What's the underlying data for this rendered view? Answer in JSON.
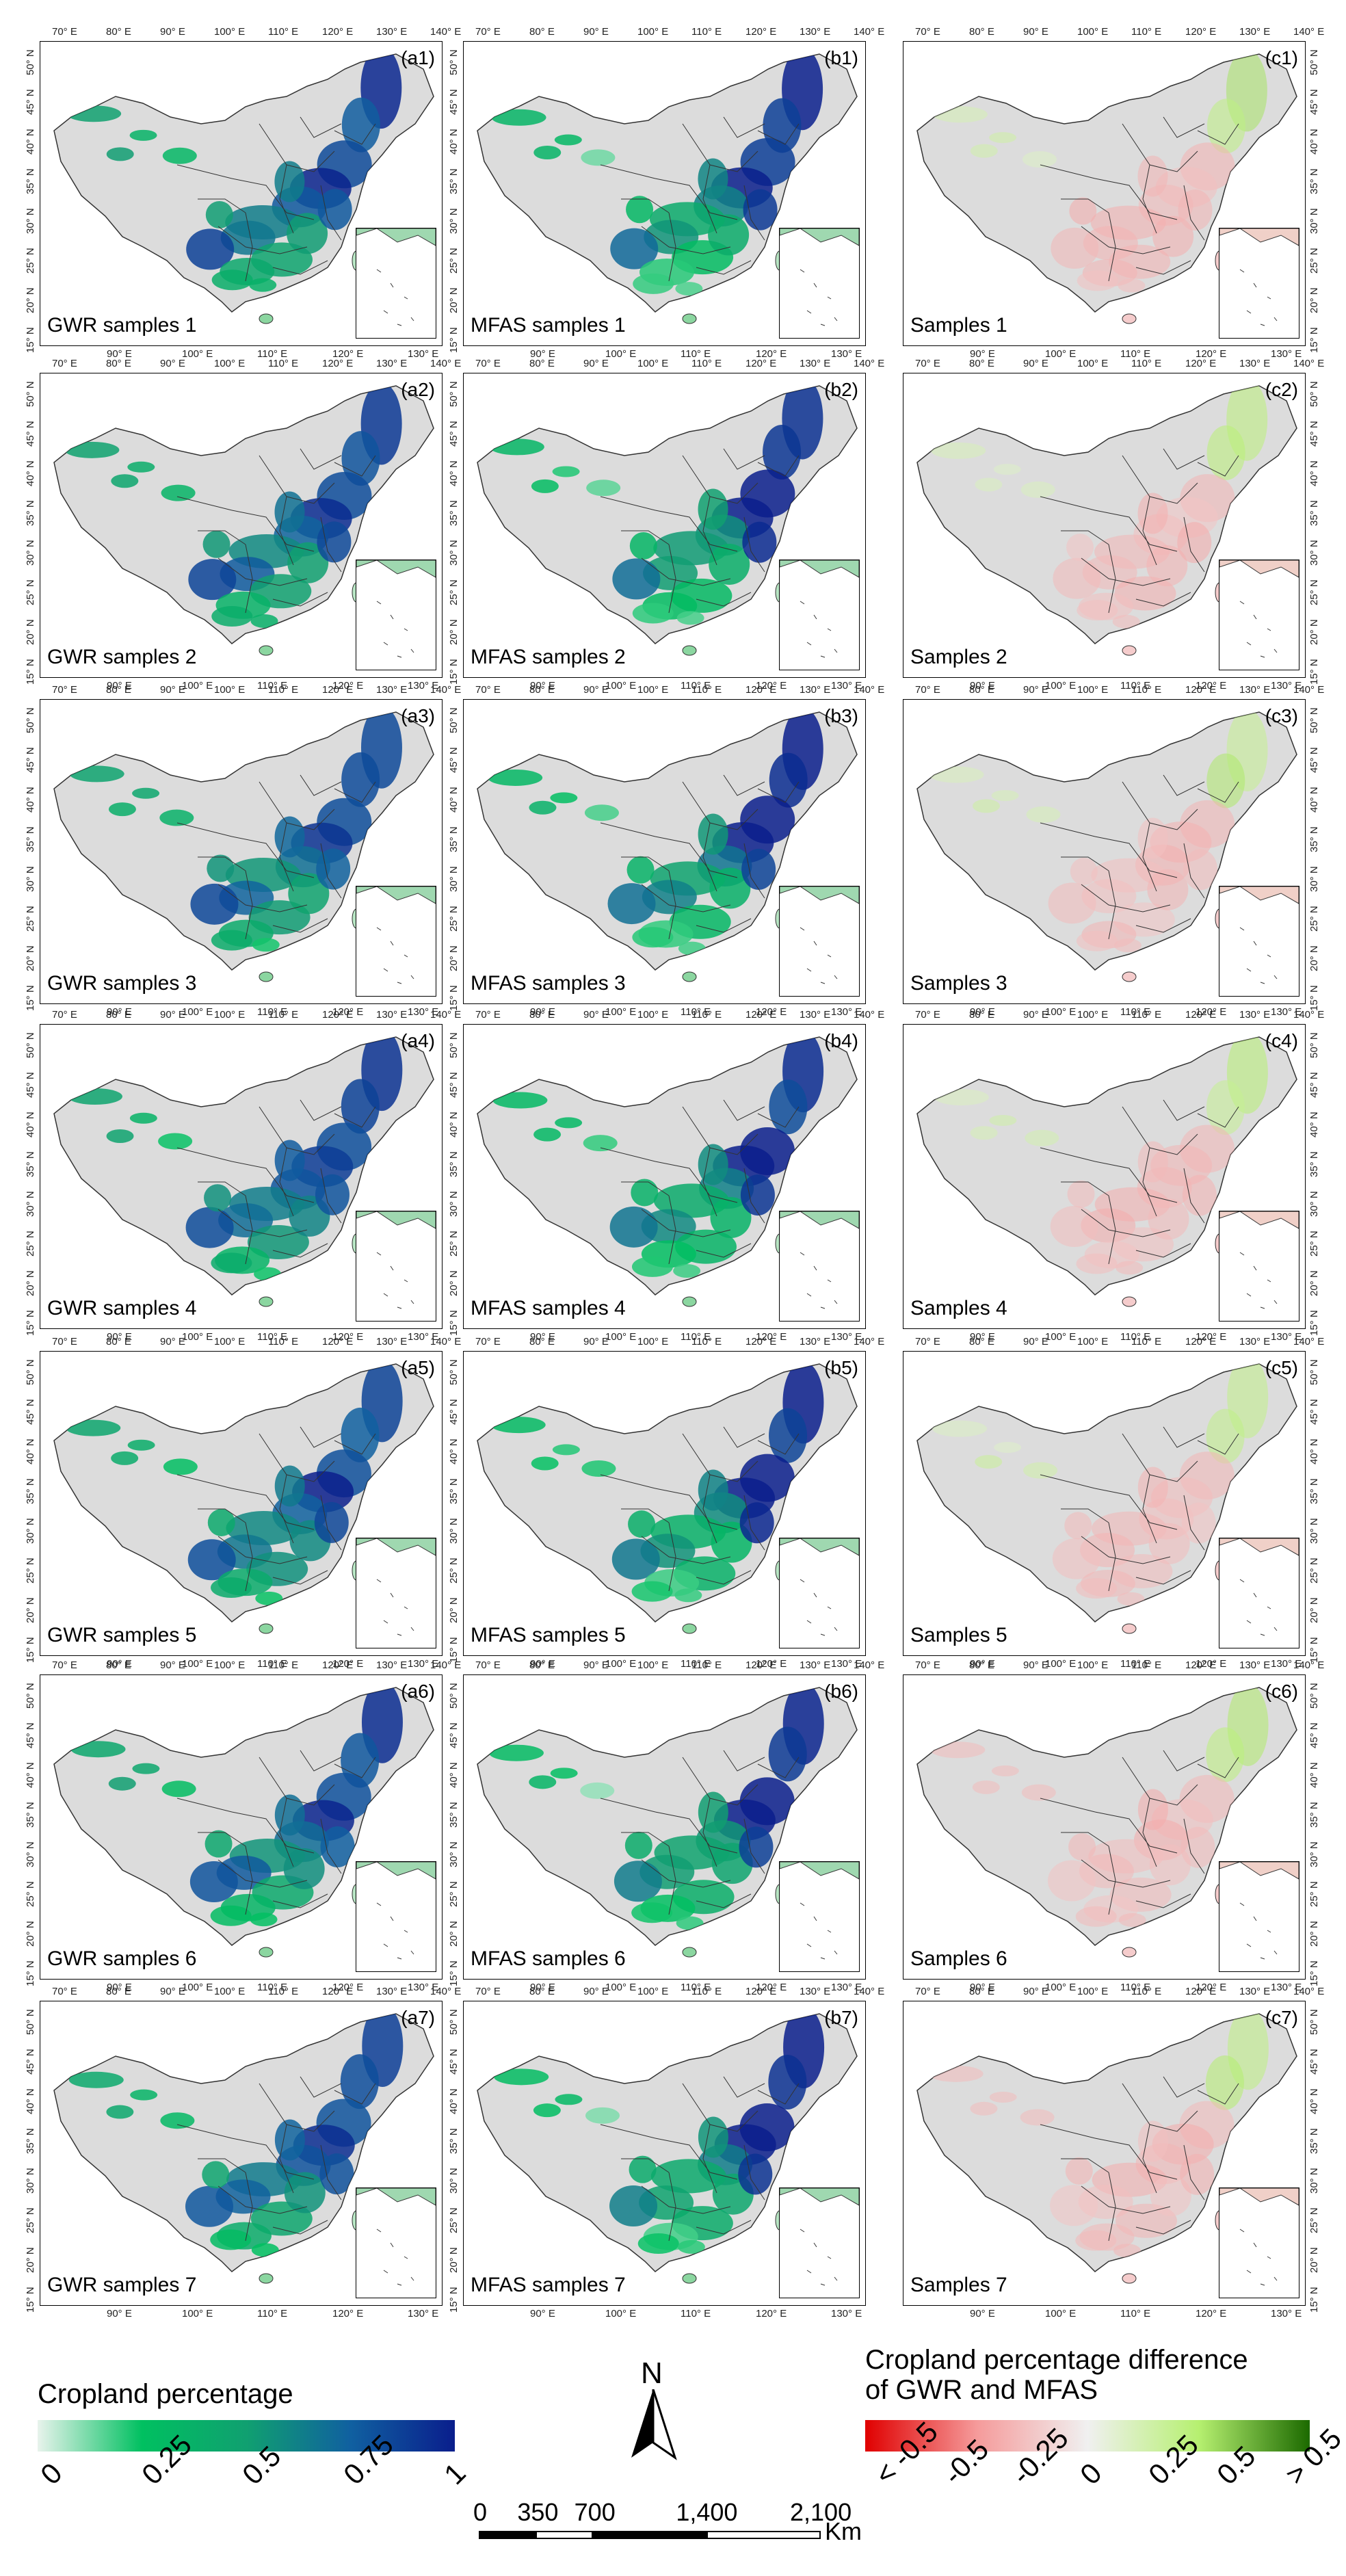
{
  "columns": [
    {
      "key": "a",
      "prefix": "GWR samples",
      "palette": "sequential"
    },
    {
      "key": "b",
      "prefix": "MFAS samples",
      "palette": "sequential"
    },
    {
      "key": "c",
      "prefix": "Samples",
      "palette": "difference"
    }
  ],
  "panels": [
    {
      "id": "(a1)",
      "label": "GWR samples 1",
      "col": "a",
      "row": 1
    },
    {
      "id": "(b1)",
      "label": "MFAS samples 1",
      "col": "b",
      "row": 1
    },
    {
      "id": "(c1)",
      "label": "Samples 1",
      "col": "c",
      "row": 1
    },
    {
      "id": "(a2)",
      "label": "GWR samples 2",
      "col": "a",
      "row": 2
    },
    {
      "id": "(b2)",
      "label": "MFAS samples 2",
      "col": "b",
      "row": 2
    },
    {
      "id": "(c2)",
      "label": "Samples 2",
      "col": "c",
      "row": 2
    },
    {
      "id": "(a3)",
      "label": "GWR samples 3",
      "col": "a",
      "row": 3
    },
    {
      "id": "(b3)",
      "label": "MFAS samples 3",
      "col": "b",
      "row": 3
    },
    {
      "id": "(c3)",
      "label": "Samples 3",
      "col": "c",
      "row": 3
    },
    {
      "id": "(a4)",
      "label": "GWR samples 4",
      "col": "a",
      "row": 4
    },
    {
      "id": "(b4)",
      "label": "MFAS samples 4",
      "col": "b",
      "row": 4
    },
    {
      "id": "(c4)",
      "label": "Samples 4",
      "col": "c",
      "row": 4
    },
    {
      "id": "(a5)",
      "label": "GWR samples 5",
      "col": "a",
      "row": 5
    },
    {
      "id": "(b5)",
      "label": "MFAS samples 5",
      "col": "b",
      "row": 5
    },
    {
      "id": "(c5)",
      "label": "Samples 5",
      "col": "c",
      "row": 5
    },
    {
      "id": "(a6)",
      "label": "GWR samples 6",
      "col": "a",
      "row": 6
    },
    {
      "id": "(b6)",
      "label": "MFAS samples 6",
      "col": "b",
      "row": 6
    },
    {
      "id": "(c6)",
      "label": "Samples 6",
      "col": "c",
      "row": 6
    },
    {
      "id": "(a7)",
      "label": "GWR samples 7",
      "col": "a",
      "row": 7
    },
    {
      "id": "(b7)",
      "label": "MFAS samples 7",
      "col": "b",
      "row": 7
    },
    {
      "id": "(c7)",
      "label": "Samples 7",
      "col": "c",
      "row": 7
    }
  ],
  "axes": {
    "top_ticks": [
      "70° E",
      "80° E",
      "90° E",
      "100° E",
      "110° E",
      "120° E",
      "130° E",
      "140° E"
    ],
    "bottom_ticks": [
      "90° E",
      "100° E",
      "110° E",
      "120° E",
      "130° E"
    ],
    "lat_ticks": [
      "50° N",
      "45° N",
      "40° N",
      "35° N",
      "30° N",
      "25° N",
      "20° N",
      "15° N"
    ]
  },
  "legend_sequential": {
    "title": "Cropland percentage",
    "ticks": [
      "0",
      "0.25",
      "0.5",
      "0.75",
      "1"
    ],
    "colors": [
      "#e8f3ec",
      "#00c060",
      "#10a070",
      "#1060a0",
      "#0a1e8c"
    ]
  },
  "legend_difference": {
    "title_line1": "Cropland percentage difference",
    "title_line2": "of GWR and MFAS",
    "ticks": [
      "< -0.5",
      "-0.5",
      "-0.25",
      "0",
      "0.25",
      "0.5",
      "> 0.5"
    ],
    "colors": [
      "#e00000",
      "#f59a9a",
      "#f0f0f0",
      "#b6f070",
      "#1c6a00"
    ]
  },
  "north_arrow": {
    "label": "N"
  },
  "scalebar": {
    "ticks": [
      "0",
      "350",
      "700",
      "1,400",
      "2,100"
    ],
    "unit": "Km"
  }
}
